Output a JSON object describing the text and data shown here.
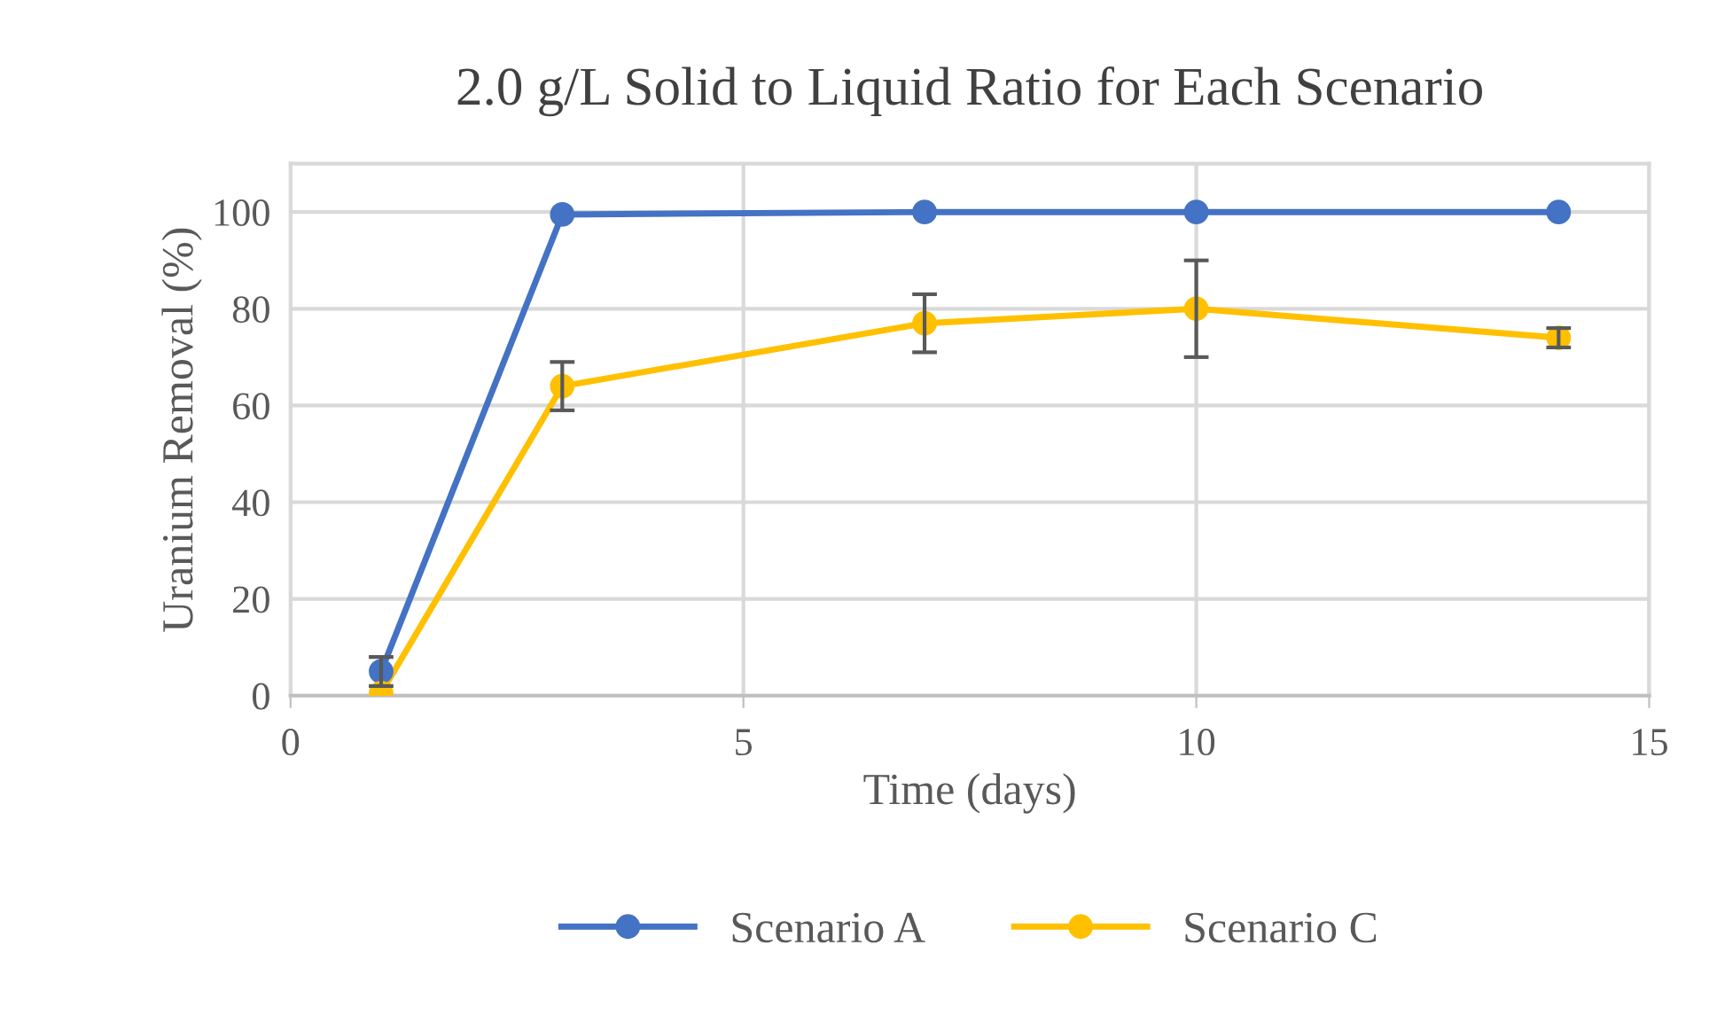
{
  "chart_data": {
    "type": "line",
    "title": "2.0 g/L Solid to Liquid Ratio for Each Scenario",
    "xlabel": "Time (days)",
    "ylabel": "Uranium Removal (%)",
    "x": [
      1,
      3,
      7,
      10,
      14
    ],
    "series": [
      {
        "name": "Scenario A",
        "color": "#4472c4",
        "values": [
          5,
          99.5,
          100,
          100,
          100
        ],
        "errors": [
          3,
          null,
          null,
          null,
          null
        ]
      },
      {
        "name": "Scenario C",
        "color": "#ffc000",
        "values": [
          0.5,
          64,
          77,
          80,
          74
        ],
        "errors": [
          null,
          5,
          6,
          10,
          2
        ]
      }
    ],
    "xlim": [
      0,
      15
    ],
    "xticks": [
      0,
      5,
      10,
      15
    ],
    "ylim": [
      0,
      110
    ],
    "yticks": [
      0,
      20,
      40,
      60,
      80,
      100
    ],
    "grid": true,
    "legend": "bottom",
    "marker": "circle",
    "line_style": "solid"
  }
}
